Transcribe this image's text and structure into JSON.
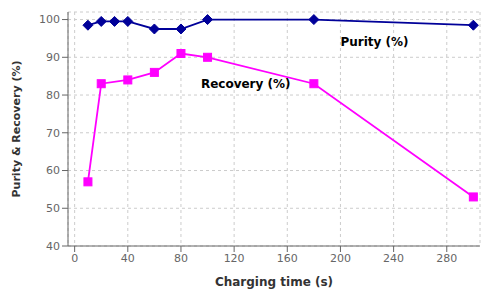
{
  "chart_data": {
    "type": "line",
    "xlabel": "Charging time (s)",
    "ylabel": "Purity & Recovery (%)",
    "xlim": [
      -5,
      305
    ],
    "ylim": [
      40,
      102
    ],
    "xticks": [
      0,
      40,
      80,
      120,
      160,
      200,
      240,
      280
    ],
    "yticks": [
      40,
      50,
      60,
      70,
      80,
      90,
      100
    ],
    "grid": true,
    "series": [
      {
        "color": "#000099",
        "marker": "diamond",
        "x": [
          10,
          20,
          30,
          40,
          60,
          80,
          100,
          180,
          300
        ],
        "values": [
          98.5,
          99.5,
          99.5,
          99.5,
          97.5,
          97.5,
          100,
          100,
          98.5
        ]
      },
      {
        "color": "#FF00FF",
        "marker": "square",
        "x": [
          10,
          20,
          40,
          60,
          80,
          100,
          180,
          300
        ],
        "values": [
          57,
          83,
          84,
          86,
          91,
          90,
          83,
          53
        ]
      }
    ],
    "annotations": [
      {
        "text": "Purity (%)",
        "x": 200,
        "y": 94
      },
      {
        "text": "Recovery (%)",
        "x": 95,
        "y": 83
      }
    ]
  }
}
